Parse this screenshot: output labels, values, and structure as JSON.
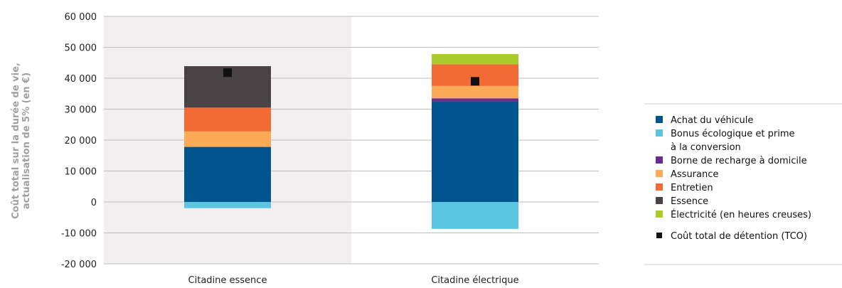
{
  "chart_data": {
    "type": "bar",
    "stacked": true,
    "ylabel_lines": [
      "Coût total sur la durée de vie,",
      "actualisation de 5% (en €)"
    ],
    "ylim": [
      -20000,
      60000
    ],
    "yticks": [
      {
        "value": 60000,
        "label": "60 000"
      },
      {
        "value": 50000,
        "label": "50 000"
      },
      {
        "value": 40000,
        "label": "40 000"
      },
      {
        "value": 30000,
        "label": "30 000"
      },
      {
        "value": 20000,
        "label": "20 000"
      },
      {
        "value": 10000,
        "label": "10 000"
      },
      {
        "value": 0,
        "label": "0"
      },
      {
        "value": -10000,
        "label": "-10 000"
      },
      {
        "value": -20000,
        "label": "-20 000"
      }
    ],
    "categories": [
      "Citadine essence",
      "Citadine électrique"
    ],
    "series": [
      {
        "name": "Achat du véhicule",
        "color": "#00558f",
        "values": [
          17800,
          32500
        ]
      },
      {
        "name": "Bonus écologique et prime",
        "name_line2": "à la conversion",
        "color": "#5bc5e0",
        "values": [
          -2000,
          -8700
        ]
      },
      {
        "name": "Borne de recharge à domicile",
        "color": "#6b2c91",
        "values": [
          0,
          1000
        ]
      },
      {
        "name": "Assurance",
        "color": "#fbaa55",
        "values": [
          5000,
          4000
        ]
      },
      {
        "name": "Entretien",
        "color": "#f26b35",
        "values": [
          7700,
          7000
        ]
      },
      {
        "name": "Essence",
        "color": "#4a4345",
        "values": [
          13400,
          0
        ]
      },
      {
        "name": "Électricité (en heures creuses)",
        "color": "#a9cb2c",
        "values": [
          0,
          3300
        ]
      }
    ],
    "tco": {
      "name": "Coût total de détention (TCO)",
      "color": "#111111",
      "values": [
        41800,
        39000
      ]
    },
    "shaded_band_color": "#f2eff0",
    "grid": true,
    "legend_position": "right"
  }
}
